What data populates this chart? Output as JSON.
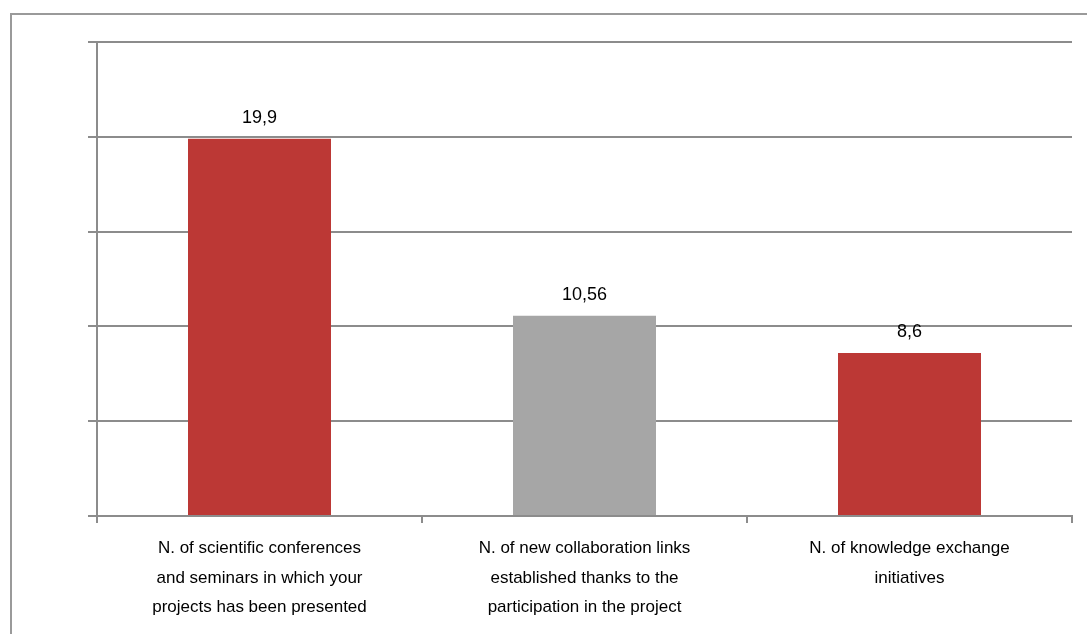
{
  "chart_data": {
    "type": "bar",
    "categories": [
      "N. of scientific conferences and seminars in which your projects has been presented",
      "N. of new collaboration links established thanks to the participation in the project",
      "N. of knowledge exchange initiatives"
    ],
    "values": [
      19.9,
      10.56,
      8.6
    ],
    "colors": [
      "#bc3835",
      "#a6a6a6",
      "#bc3835"
    ],
    "value_labels": [
      "19,9",
      "10,56",
      "8,6"
    ],
    "grid": "y",
    "tick_labels": "x"
  }
}
